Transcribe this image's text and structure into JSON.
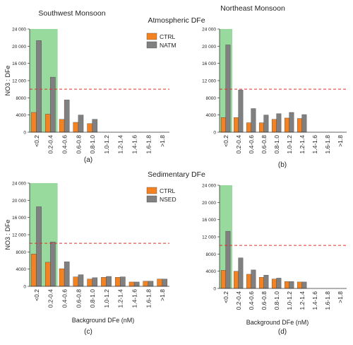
{
  "headers": {
    "left_column": "Southwest Monsoon",
    "right_column": "Northeast Monsoon",
    "row1": "Atmospheric DFe",
    "row2": "Sedimentary DFe"
  },
  "colors": {
    "ctrl": "#f58220",
    "experiment": "#808080",
    "highlight": "#86d38c",
    "threshold": "#e0302a"
  },
  "chart_data": [
    {
      "type": "bar",
      "panel_label": "(a)",
      "categories": [
        "<0.2",
        "0.2-0.4",
        "0.4-0.6",
        "0.6-0.8",
        "0.8-1.0",
        "1.0-1.2",
        "1.2-1.4",
        "1.4-1.6",
        "1.6-1.8",
        ">1.8"
      ],
      "series": [
        {
          "name": "CTRL",
          "values": [
            4600,
            4200,
            3000,
            2300,
            2000,
            0,
            0,
            0,
            0,
            0
          ]
        },
        {
          "name": "NATM",
          "values": [
            21300,
            12800,
            7500,
            4000,
            3000,
            0,
            0,
            0,
            0,
            0
          ]
        }
      ],
      "ylabel": "NO3 : DFe",
      "xlabel": "",
      "ylim": [
        0,
        24000
      ],
      "yticks": [
        "0",
        "4000",
        "8000",
        "12 000",
        "16 000",
        "20 000",
        "24 000"
      ],
      "threshold": 10000,
      "highlight_categories": 2,
      "legend": "top-right"
    },
    {
      "type": "bar",
      "panel_label": "(b)",
      "categories": [
        "<0.2",
        "0.2-0.4",
        "0.4-0.6",
        "0.6-0.8",
        "0.8-1.0",
        "1.0-1.2",
        "1.2-1.4",
        "1.4-1.6",
        "1.6-1.8",
        ">1.8"
      ],
      "series": [
        {
          "name": "CTRL",
          "values": [
            3400,
            3400,
            2200,
            2200,
            3000,
            3300,
            3200,
            0,
            0,
            0
          ]
        },
        {
          "name": "NATM",
          "values": [
            20300,
            9800,
            5500,
            4000,
            4300,
            4600,
            4100,
            0,
            0,
            0
          ]
        }
      ],
      "ylabel": "",
      "xlabel": "",
      "ylim": [
        0,
        24000
      ],
      "yticks": [
        "0",
        "4000",
        "8000",
        "12 000",
        "16 000",
        "20 000",
        "24 000"
      ],
      "threshold": 10000,
      "highlight_categories": 1
    },
    {
      "type": "bar",
      "panel_label": "(c)",
      "categories": [
        "<0.2",
        "0.2-0.4",
        "0.4-0.6",
        "0.6-0.8",
        "0.8-1.0",
        "1.0-1.2",
        "1.2-1.4",
        "1.4-1.6",
        "1.6-1.8",
        ">1.8"
      ],
      "series": [
        {
          "name": "CTRL",
          "values": [
            7500,
            5600,
            4100,
            2200,
            1700,
            2100,
            2100,
            1000,
            1200,
            1700
          ]
        },
        {
          "name": "NSED",
          "values": [
            18500,
            10300,
            5700,
            2700,
            2000,
            2300,
            2200,
            1000,
            1200,
            1700
          ]
        }
      ],
      "ylabel": "NO3 : DFe",
      "xlabel": "Background DFe (nM)",
      "ylim": [
        0,
        24000
      ],
      "yticks": [
        "0",
        "4000",
        "8000",
        "12 000",
        "16 000",
        "20 000",
        "24 000"
      ],
      "threshold": 10000,
      "highlight_categories": 2,
      "legend": "top-right"
    },
    {
      "type": "bar",
      "panel_label": "(d)",
      "categories": [
        "<0.2",
        "0.2-0.4",
        "0.4-0.6",
        "0.6-0.8",
        "0.8-1.0",
        "1.0-1.2",
        "1.2-1.4",
        "1.4-1.6",
        "1.6-1.8",
        ">1.8"
      ],
      "series": [
        {
          "name": "CTRL",
          "values": [
            4200,
            4000,
            3300,
            2600,
            2200,
            1600,
            1500,
            0,
            0,
            0
          ]
        },
        {
          "name": "NSED",
          "values": [
            13300,
            7100,
            4300,
            3100,
            2400,
            1600,
            1500,
            0,
            0,
            0
          ]
        }
      ],
      "ylabel": "",
      "xlabel": "Background DFe (nM)",
      "ylim": [
        0,
        24000
      ],
      "yticks": [
        "0",
        "4000",
        "8000",
        "12 000",
        "16 000",
        "20 000",
        "24 000"
      ],
      "threshold": 10000,
      "highlight_categories": 1
    }
  ]
}
